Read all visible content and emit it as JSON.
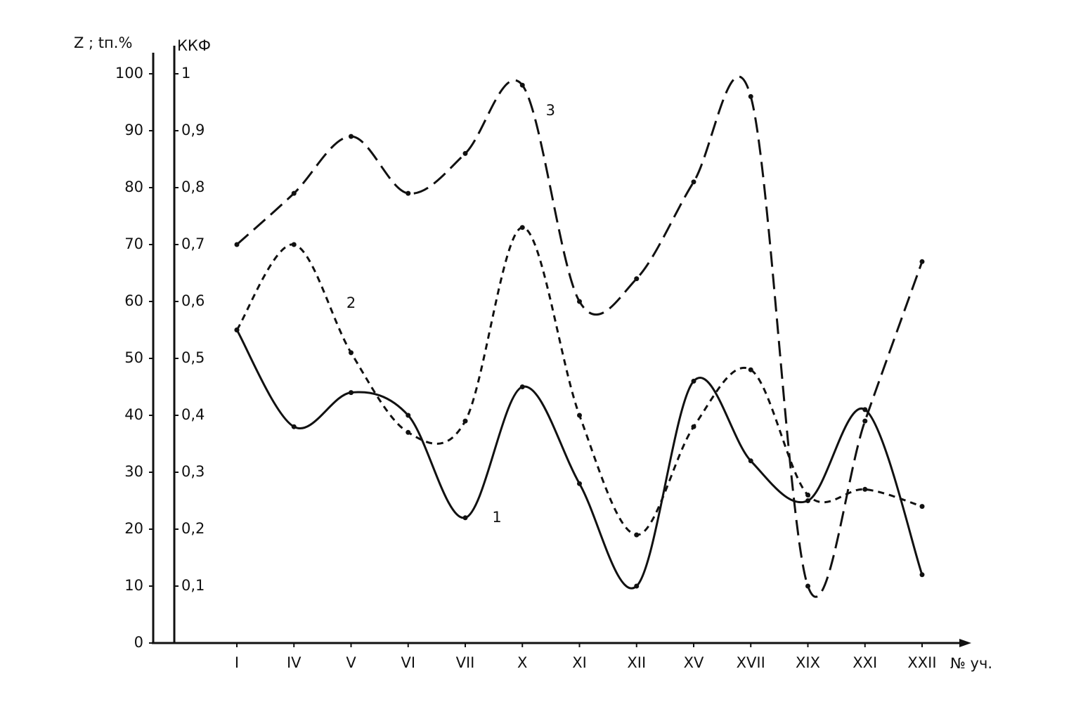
{
  "chart_data": {
    "type": "line",
    "y_label": "Z ; tп.%",
    "y2_label": "ККФ",
    "x_label": "№ уч.",
    "categories": [
      "I",
      "IV",
      "V",
      "VI",
      "VII",
      "X",
      "XI",
      "XII",
      "XV",
      "XVII",
      "XIX",
      "XXI",
      "XXII"
    ],
    "series": [
      {
        "name": "1",
        "color": "#111111",
        "line_style": "solid",
        "values": [
          55,
          38,
          44,
          40,
          22,
          45,
          28,
          10,
          46,
          32,
          25,
          41,
          12
        ]
      },
      {
        "name": "2",
        "color": "#111111",
        "line_style": "dashed",
        "values": [
          55,
          70,
          51,
          37,
          39,
          73,
          40,
          19,
          38,
          48,
          26,
          27,
          24
        ]
      },
      {
        "name": "3",
        "color": "#111111",
        "line_style": "long-dashed",
        "values": [
          70,
          79,
          89,
          79,
          86,
          98,
          60,
          64,
          81,
          96,
          10,
          39,
          67
        ]
      }
    ],
    "ylim": [
      0,
      100
    ],
    "yticks": [
      0,
      10,
      20,
      30,
      40,
      50,
      60,
      70,
      80,
      90,
      100
    ],
    "y2lim": [
      0,
      1
    ],
    "y2ticks": [
      {
        "value": 0.1,
        "label": "0,1"
      },
      {
        "value": 0.2,
        "label": "0,2"
      },
      {
        "value": 0.3,
        "label": "0,3"
      },
      {
        "value": 0.4,
        "label": "0,4"
      },
      {
        "value": 0.5,
        "label": "0,5"
      },
      {
        "value": 0.6,
        "label": "0,6"
      },
      {
        "value": 0.7,
        "label": "0,7"
      },
      {
        "value": 0.8,
        "label": "0,8"
      },
      {
        "value": 0.9,
        "label": "0,9"
      },
      1
    ],
    "grid": false
  }
}
